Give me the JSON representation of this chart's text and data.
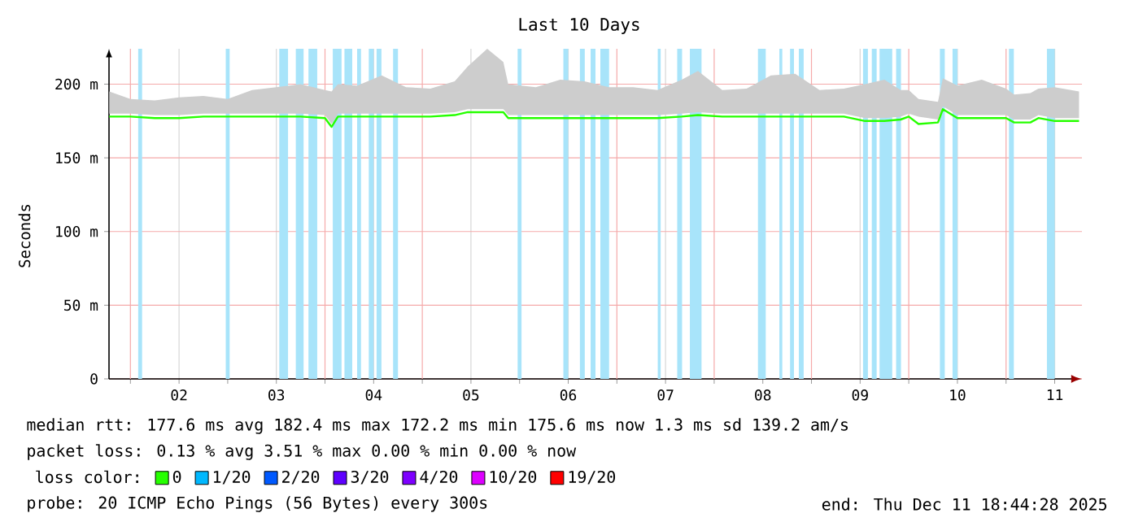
{
  "chart_data": {
    "type": "line",
    "title": "Last 10 Days",
    "ylabel": "Seconds",
    "legend_title": "loss color:",
    "legend": "bottom",
    "grid": true,
    "xlim": [
      1.78,
      11.78
    ],
    "xticks": [
      {
        "value": 2,
        "label": null
      },
      {
        "value": 2.5,
        "label": "02"
      },
      {
        "value": 3,
        "label": null
      },
      {
        "value": 3.5,
        "label": "03"
      },
      {
        "value": 4,
        "label": null
      },
      {
        "value": 4.5,
        "label": "04"
      },
      {
        "value": 5,
        "label": null
      },
      {
        "value": 5.5,
        "label": "05"
      },
      {
        "value": 6,
        "label": null
      },
      {
        "value": 6.5,
        "label": "06"
      },
      {
        "value": 7,
        "label": null
      },
      {
        "value": 7.5,
        "label": "07"
      },
      {
        "value": 8,
        "label": null
      },
      {
        "value": 8.5,
        "label": "08"
      },
      {
        "value": 9,
        "label": null
      },
      {
        "value": 9.5,
        "label": "09"
      },
      {
        "value": 10,
        "label": null
      },
      {
        "value": 10.5,
        "label": "10"
      },
      {
        "value": 11,
        "label": null
      },
      {
        "value": 11.5,
        "label": "11"
      }
    ],
    "ylim": [
      0,
      224
    ],
    "yticks": [
      {
        "value": 0,
        "label": "0"
      },
      {
        "value": 50,
        "label": "50 m"
      },
      {
        "value": 100,
        "label": "100 m"
      },
      {
        "value": 150,
        "label": "150 m"
      },
      {
        "value": 200,
        "label": "200 m"
      }
    ],
    "series": [
      {
        "name": "0",
        "color": "#26ff00",
        "x": [
          1.783,
          2.0,
          2.25,
          2.5,
          2.75,
          3.0,
          3.25,
          3.5,
          3.75,
          4.0,
          4.067,
          4.133,
          4.333,
          4.583,
          4.833,
          5.083,
          5.333,
          5.467,
          5.667,
          5.833,
          5.883,
          6.167,
          6.417,
          6.667,
          6.917,
          7.167,
          7.417,
          7.667,
          7.833,
          8.083,
          8.333,
          8.583,
          8.833,
          9.083,
          9.333,
          9.55,
          9.75,
          9.917,
          10.0,
          10.1,
          10.3,
          10.35,
          10.5,
          10.75,
          11.0,
          11.083,
          11.25,
          11.333,
          11.5,
          11.75
        ],
        "values": [
          178,
          178,
          177,
          177,
          178,
          178,
          178,
          178,
          178,
          177,
          171,
          178,
          178,
          178,
          178,
          178,
          179,
          181,
          181,
          181,
          177,
          177,
          177,
          177,
          177,
          177,
          177,
          178,
          179,
          178,
          178,
          178,
          178,
          178,
          178,
          175,
          175,
          176,
          178,
          173,
          174,
          183,
          177,
          177,
          177,
          174,
          174,
          177,
          175,
          175
        ],
        "lower": [
          180,
          180,
          179,
          179,
          180,
          180,
          180,
          180,
          180,
          179,
          173,
          180,
          180,
          180,
          180,
          180,
          181,
          183,
          183,
          183,
          179,
          179,
          179,
          179,
          179,
          179,
          179,
          180,
          181,
          180,
          180,
          180,
          180,
          180,
          180,
          177,
          177,
          178,
          180,
          178,
          176,
          185,
          179,
          179,
          179,
          176,
          176,
          179,
          177,
          177
        ],
        "upper": [
          195,
          190,
          189,
          191,
          192,
          190,
          196,
          198,
          200,
          196,
          195,
          200,
          199,
          206,
          198,
          197,
          202,
          212,
          224,
          215,
          200,
          198,
          203,
          202,
          198,
          198,
          196,
          203,
          209,
          196,
          197,
          206,
          207,
          196,
          197,
          200,
          203,
          196,
          196,
          190,
          188,
          204,
          199,
          203,
          197,
          193,
          194,
          197,
          198,
          195
        ]
      },
      {
        "name": "1/20",
        "color": "#00b8ff"
      },
      {
        "name": "2/20",
        "color": "#0059ff"
      },
      {
        "name": "3/20",
        "color": "#5e00ff"
      },
      {
        "name": "4/20",
        "color": "#7e00ff"
      },
      {
        "name": "10/20",
        "color": "#dd00ff"
      },
      {
        "name": "19/20",
        "color": "#ff0000"
      }
    ],
    "bands": [
      {
        "axis": "x",
        "from": 2.08,
        "to": 2.12,
        "color": "#a8e4fa"
      },
      {
        "axis": "x",
        "from": 2.98,
        "to": 3.02,
        "color": "#a8e4fa"
      },
      {
        "axis": "x",
        "from": 3.53,
        "to": 3.62,
        "color": "#a8e4fa"
      },
      {
        "axis": "x",
        "from": 3.7,
        "to": 3.78,
        "color": "#a8e4fa"
      },
      {
        "axis": "x",
        "from": 3.83,
        "to": 3.92,
        "color": "#a8e4fa"
      },
      {
        "axis": "x",
        "from": 4.08,
        "to": 4.17,
        "color": "#a8e4fa"
      },
      {
        "axis": "x",
        "from": 4.2,
        "to": 4.28,
        "color": "#a8e4fa"
      },
      {
        "axis": "x",
        "from": 4.33,
        "to": 4.37,
        "color": "#a8e4fa"
      },
      {
        "axis": "x",
        "from": 4.45,
        "to": 4.5,
        "color": "#a8e4fa"
      },
      {
        "axis": "x",
        "from": 4.53,
        "to": 4.58,
        "color": "#a8e4fa"
      },
      {
        "axis": "x",
        "from": 4.7,
        "to": 4.75,
        "color": "#a8e4fa"
      },
      {
        "axis": "x",
        "from": 5.98,
        "to": 6.02,
        "color": "#a8e4fa"
      },
      {
        "axis": "x",
        "from": 6.45,
        "to": 6.5,
        "color": "#a8e4fa"
      },
      {
        "axis": "x",
        "from": 6.62,
        "to": 6.67,
        "color": "#a8e4fa"
      },
      {
        "axis": "x",
        "from": 6.73,
        "to": 6.78,
        "color": "#a8e4fa"
      },
      {
        "axis": "x",
        "from": 6.83,
        "to": 6.92,
        "color": "#a8e4fa"
      },
      {
        "axis": "x",
        "from": 7.42,
        "to": 7.45,
        "color": "#a8e4fa"
      },
      {
        "axis": "x",
        "from": 7.62,
        "to": 7.67,
        "color": "#a8e4fa"
      },
      {
        "axis": "x",
        "from": 7.75,
        "to": 7.87,
        "color": "#a8e4fa"
      },
      {
        "axis": "x",
        "from": 8.45,
        "to": 8.53,
        "color": "#a8e4fa"
      },
      {
        "axis": "x",
        "from": 8.67,
        "to": 8.7,
        "color": "#a8e4fa"
      },
      {
        "axis": "x",
        "from": 8.78,
        "to": 8.82,
        "color": "#a8e4fa"
      },
      {
        "axis": "x",
        "from": 8.87,
        "to": 8.92,
        "color": "#a8e4fa"
      },
      {
        "axis": "x",
        "from": 9.53,
        "to": 9.58,
        "color": "#a8e4fa"
      },
      {
        "axis": "x",
        "from": 9.62,
        "to": 9.67,
        "color": "#a8e4fa"
      },
      {
        "axis": "x",
        "from": 9.7,
        "to": 9.83,
        "color": "#a8e4fa"
      },
      {
        "axis": "x",
        "from": 9.87,
        "to": 9.92,
        "color": "#a8e4fa"
      },
      {
        "axis": "x",
        "from": 10.32,
        "to": 10.37,
        "color": "#a8e4fa"
      },
      {
        "axis": "x",
        "from": 10.45,
        "to": 10.5,
        "color": "#a8e4fa"
      },
      {
        "axis": "x",
        "from": 11.03,
        "to": 11.08,
        "color": "#a8e4fa"
      },
      {
        "axis": "x",
        "from": 11.42,
        "to": 11.5,
        "color": "#a8e4fa"
      }
    ],
    "annotations": [
      "median rtt:  177.6 ms avg  182.4 ms max  172.2 ms min  175.6 ms now  1.3 ms sd  139.2   am/s",
      "packet loss: 0.13 % avg  3.51 % max  0.00 % min  0.00 % now",
      "probe:        20 ICMP Echo Pings (56 Bytes) every 300s",
      "end: Thu Dec 11 18:44:28 2025"
    ]
  }
}
